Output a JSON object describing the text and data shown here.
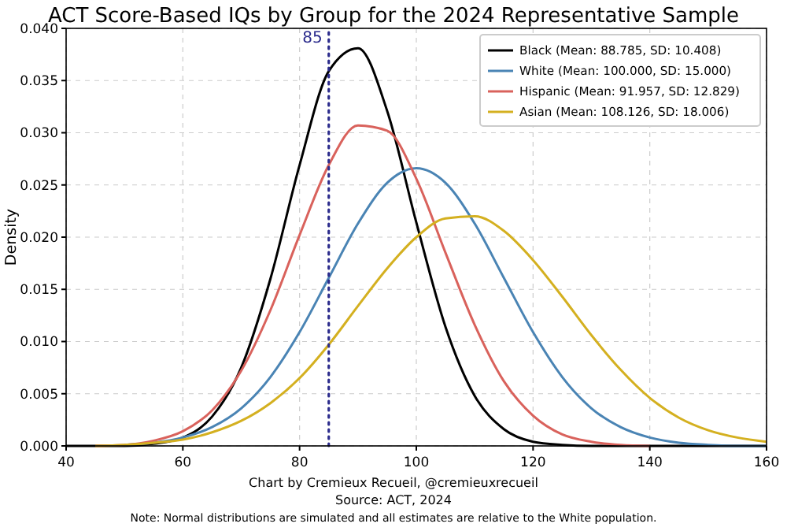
{
  "chart_data": {
    "type": "line",
    "title": "ACT Score-Based IQs by Group for the 2024 Representative Sample",
    "ylabel": "Density",
    "x": [
      40,
      45,
      50,
      55,
      60,
      65,
      70,
      75,
      80,
      85,
      90,
      95,
      100,
      105,
      110,
      115,
      120,
      125,
      130,
      135,
      140,
      145,
      150,
      155,
      160
    ],
    "series": [
      {
        "name": "Black (Mean: 88.785, SD: 10.408)",
        "color": "#000000",
        "values": [
          0,
          0,
          0,
          0.0002,
          0.0008,
          0.0028,
          0.0075,
          0.016,
          0.0269,
          0.0359,
          0.0381,
          0.0321,
          0.0214,
          0.0114,
          0.0048,
          0.0016,
          0.0004,
          0.0001,
          0,
          0,
          0,
          0,
          0,
          0,
          0
        ]
      },
      {
        "name": "White (Mean: 100.000, SD: 15.000)",
        "color": "#4a84b4",
        "values": [
          null,
          null,
          0.0001,
          0.0003,
          0.0008,
          0.0018,
          0.0036,
          0.0066,
          0.0109,
          0.0161,
          0.0213,
          0.0252,
          0.0266,
          0.0252,
          0.0213,
          0.0161,
          0.0109,
          0.0066,
          0.0036,
          0.0018,
          0.0008,
          0.0003,
          0.0001,
          0,
          0
        ]
      },
      {
        "name": "Hispanic (Mean: 91.957, SD: 12.829)",
        "color": "#d9625c",
        "values": [
          null,
          0,
          0.0001,
          0.0005,
          0.0014,
          0.0034,
          0.0072,
          0.013,
          0.0202,
          0.0269,
          0.0307,
          0.0302,
          0.0256,
          0.0185,
          0.0116,
          0.0062,
          0.0029,
          0.0011,
          0.0004,
          0.0001,
          0,
          null,
          null,
          null,
          null
        ]
      },
      {
        "name": "Asian (Mean: 108.126, SD: 18.006)",
        "color": "#d4b020",
        "values": [
          null,
          0,
          0.0001,
          0.0003,
          0.0006,
          0.0013,
          0.0024,
          0.0041,
          0.0065,
          0.0097,
          0.0134,
          0.017,
          0.02,
          0.0218,
          0.022,
          0.0206,
          0.0178,
          0.0143,
          0.0106,
          0.0073,
          0.0046,
          0.0027,
          0.0015,
          0.0008,
          0.0004
        ]
      }
    ],
    "xlim": [
      40,
      160
    ],
    "xticks": [
      40,
      60,
      80,
      100,
      120,
      140,
      160
    ],
    "ylim": [
      0,
      0.04
    ],
    "yticks": [
      {
        "value": 0,
        "label": "0.000"
      },
      {
        "value": 0.005,
        "label": "0.005"
      },
      {
        "value": 0.01,
        "label": "0.010"
      },
      {
        "value": 0.015,
        "label": "0.015"
      },
      {
        "value": 0.02,
        "label": "0.020"
      },
      {
        "value": 0.025,
        "label": "0.025"
      },
      {
        "value": 0.03,
        "label": "0.030"
      },
      {
        "value": 0.035,
        "label": "0.035"
      },
      {
        "value": 0.04,
        "label": "0.040"
      }
    ],
    "grid": true,
    "legend": "top right",
    "line_style": "solid",
    "ref_lines": [
      {
        "axis": "x",
        "value": 85,
        "label": "85",
        "color": "#2b2b8c",
        "line_style": "dotted"
      }
    ],
    "annotations": [
      "Chart by Cremieux Recueil, @cremieuxrecueil",
      "Source: ACT, 2024",
      "Note: Normal distributions are simulated and all estimates are relative to the White population."
    ]
  }
}
